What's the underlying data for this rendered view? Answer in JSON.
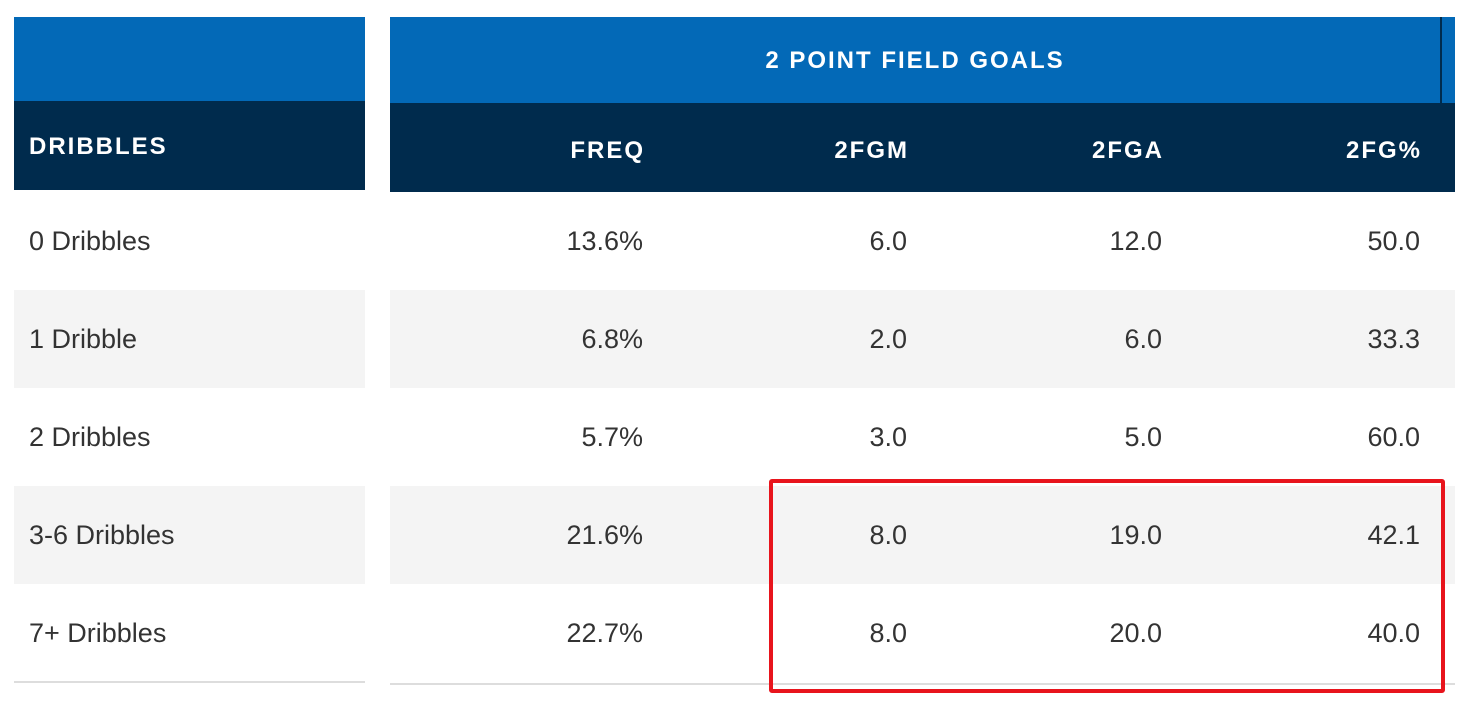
{
  "left_header": {
    "label": "DRIBBLES"
  },
  "group_header": {
    "label": "2 POINT FIELD GOALS"
  },
  "columns": [
    "FREQ",
    "2FGM",
    "2FGA",
    "2FG%"
  ],
  "rows": [
    {
      "label": "0 Dribbles",
      "values": [
        "13.6%",
        "6.0",
        "12.0",
        "50.0"
      ]
    },
    {
      "label": "1 Dribble",
      "values": [
        "6.8%",
        "2.0",
        "6.0",
        "33.3"
      ]
    },
    {
      "label": "2 Dribbles",
      "values": [
        "5.7%",
        "3.0",
        "5.0",
        "60.0"
      ]
    },
    {
      "label": "3-6 Dribbles",
      "values": [
        "21.6%",
        "8.0",
        "19.0",
        "42.1"
      ]
    },
    {
      "label": "7+ Dribbles",
      "values": [
        "22.7%",
        "8.0",
        "20.0",
        "40.0"
      ]
    }
  ],
  "colors": {
    "header_blue": "#0369b7",
    "header_dark": "#002b4d",
    "highlight": "#e8141c",
    "alt_row": "#f4f4f4"
  }
}
